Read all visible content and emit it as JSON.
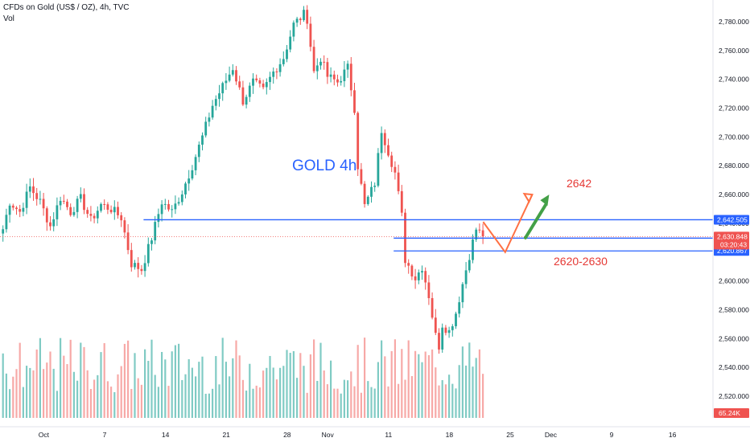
{
  "header": {
    "title": "CFDs on Gold (US$ / OZ), 4h, TVC",
    "indicator": "Vol"
  },
  "colors": {
    "up": "#26a69a",
    "down": "#ef5350",
    "vol_up": "#80cbc4",
    "vol_down": "#f7a9a7",
    "level_line": "#2962ff",
    "price_tag": "#ef5350",
    "annotation_red": "#e53935",
    "annotation_green": "#43a047",
    "annotation_blue": "#2962ff"
  },
  "chart_data": {
    "type": "candlestick",
    "symbol": "CFDs on Gold (US$ / OZ)",
    "timeframe": "4h",
    "ylim": [
      2505,
      2795
    ],
    "y_ticks": [
      2520,
      2540,
      2560,
      2580,
      2600,
      2620,
      2640,
      2660,
      2680,
      2700,
      2720,
      2740,
      2760,
      2780
    ],
    "y_tick_labels": [
      "2,520.000",
      "2,540.000",
      "2,560.000",
      "2,580.000",
      "2,600.000",
      "2,620.000",
      "2,640.000",
      "2,660.000",
      "2,680.000",
      "2,700.000",
      "2,720.000",
      "2,740.000",
      "2,760.000",
      "2,780.000"
    ],
    "x_ticks": [
      "Oct",
      "7",
      "14",
      "21",
      "28",
      "Nov",
      "11",
      "18",
      "25",
      "Dec",
      "9",
      "16"
    ],
    "x_tick_bars": [
      12,
      30,
      48,
      66,
      84,
      96,
      114,
      132,
      150,
      162,
      180,
      198
    ],
    "key_points": [
      {
        "bar": 0,
        "price": 2636
      },
      {
        "bar": 2,
        "price": 2655
      },
      {
        "bar": 5,
        "price": 2648
      },
      {
        "bar": 8,
        "price": 2665
      },
      {
        "bar": 11,
        "price": 2655
      },
      {
        "bar": 14,
        "price": 2638
      },
      {
        "bar": 17,
        "price": 2658
      },
      {
        "bar": 20,
        "price": 2648
      },
      {
        "bar": 23,
        "price": 2657
      },
      {
        "bar": 26,
        "price": 2642
      },
      {
        "bar": 29,
        "price": 2653
      },
      {
        "bar": 32,
        "price": 2650
      },
      {
        "bar": 35,
        "price": 2644
      },
      {
        "bar": 38,
        "price": 2612
      },
      {
        "bar": 41,
        "price": 2608
      },
      {
        "bar": 44,
        "price": 2630
      },
      {
        "bar": 47,
        "price": 2655
      },
      {
        "bar": 50,
        "price": 2648
      },
      {
        "bar": 53,
        "price": 2662
      },
      {
        "bar": 56,
        "price": 2680
      },
      {
        "bar": 59,
        "price": 2700
      },
      {
        "bar": 62,
        "price": 2722
      },
      {
        "bar": 65,
        "price": 2735
      },
      {
        "bar": 68,
        "price": 2748
      },
      {
        "bar": 71,
        "price": 2725
      },
      {
        "bar": 74,
        "price": 2738
      },
      {
        "bar": 77,
        "price": 2732
      },
      {
        "bar": 80,
        "price": 2745
      },
      {
        "bar": 83,
        "price": 2755
      },
      {
        "bar": 86,
        "price": 2778
      },
      {
        "bar": 89,
        "price": 2785
      },
      {
        "bar": 90,
        "price": 2782
      },
      {
        "bar": 92,
        "price": 2745
      },
      {
        "bar": 94,
        "price": 2755
      },
      {
        "bar": 96,
        "price": 2742
      },
      {
        "bar": 99,
        "price": 2738
      },
      {
        "bar": 102,
        "price": 2748
      },
      {
        "bar": 104,
        "price": 2720
      },
      {
        "bar": 105,
        "price": 2680
      },
      {
        "bar": 107,
        "price": 2652
      },
      {
        "bar": 110,
        "price": 2668
      },
      {
        "bar": 112,
        "price": 2705
      },
      {
        "bar": 114,
        "price": 2690
      },
      {
        "bar": 116,
        "price": 2675
      },
      {
        "bar": 118,
        "price": 2645
      },
      {
        "bar": 119,
        "price": 2615
      },
      {
        "bar": 122,
        "price": 2602
      },
      {
        "bar": 124,
        "price": 2610
      },
      {
        "bar": 126,
        "price": 2590
      },
      {
        "bar": 128,
        "price": 2562
      },
      {
        "bar": 129,
        "price": 2555
      },
      {
        "bar": 130,
        "price": 2570
      },
      {
        "bar": 132,
        "price": 2565
      },
      {
        "bar": 134,
        "price": 2578
      },
      {
        "bar": 136,
        "price": 2598
      },
      {
        "bar": 138,
        "price": 2618
      },
      {
        "bar": 140,
        "price": 2636
      },
      {
        "bar": 142,
        "price": 2631
      }
    ],
    "volume_label": "65.24K",
    "price_levels": [
      {
        "price": 2642.505,
        "label": "2,642.505",
        "from_bar": 42
      },
      {
        "price": 2629.754,
        "label": "2,629.754",
        "from_bar": 116
      },
      {
        "price": 2620.867,
        "label": "2,620.867",
        "from_bar": 116
      }
    ],
    "current_price": {
      "price": 2630.848,
      "label": "2,630.848",
      "countdown": "03:20:43"
    },
    "annotations": {
      "title": "GOLD  4h",
      "target_label": "2642",
      "zone_label": "2620-2630"
    }
  }
}
